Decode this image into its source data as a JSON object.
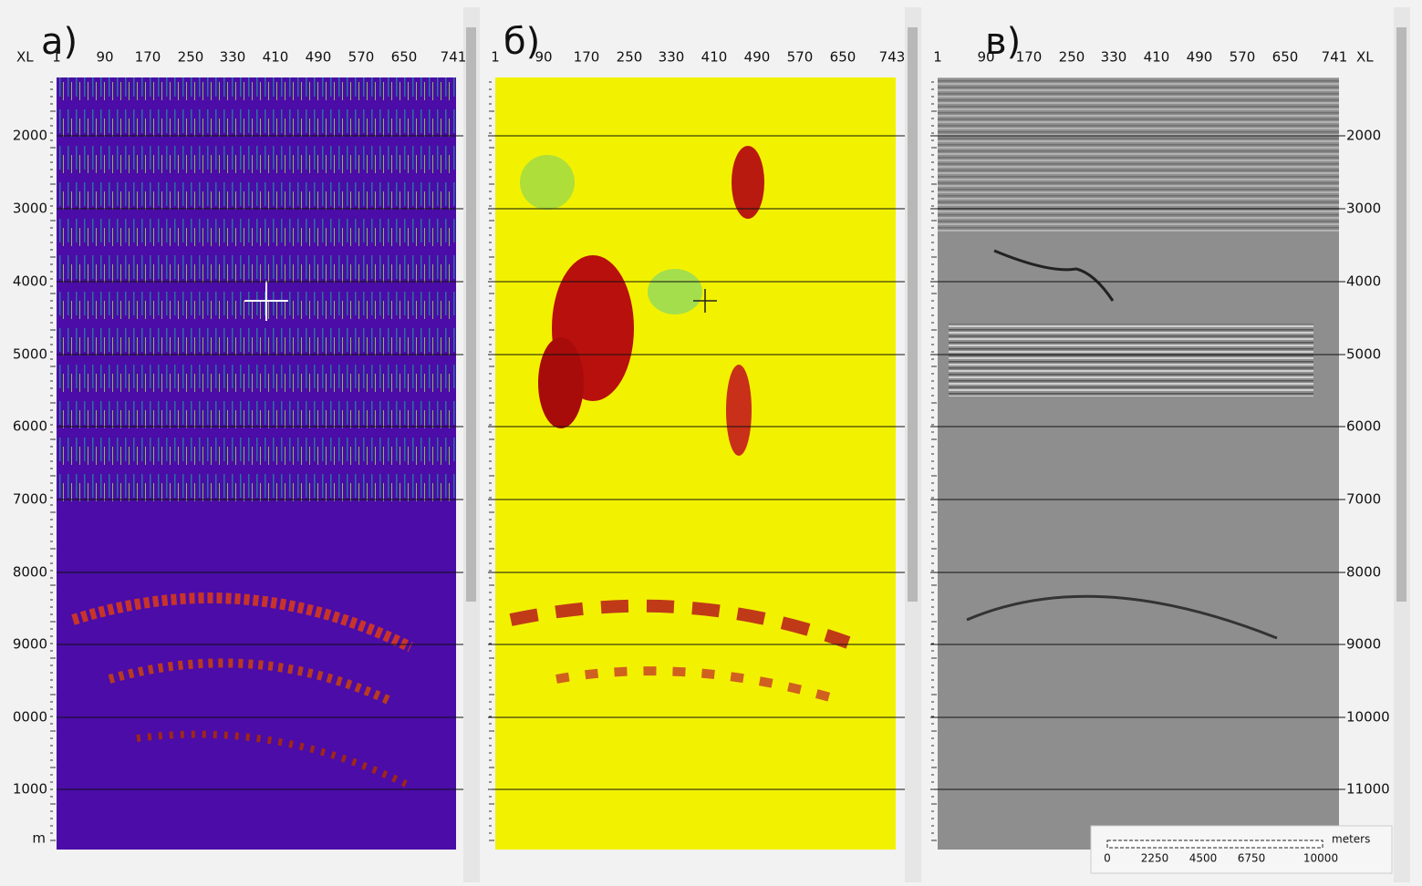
{
  "panels": [
    {
      "label": "а)",
      "axis_title": "XL",
      "top_ticks": [
        "1",
        "90",
        "170",
        "250",
        "330",
        "410",
        "490",
        "570",
        "650",
        "741"
      ],
      "depth_labels": [
        "2000",
        "3000",
        "4000",
        "5000",
        "6000",
        "7000",
        "8000",
        "9000",
        "0000",
        "1000"
      ],
      "unit": "m"
    },
    {
      "label": "б)",
      "top_ticks": [
        "1",
        "90",
        "170",
        "250",
        "330",
        "410",
        "490",
        "570",
        "650",
        "743"
      ]
    },
    {
      "label": "в)",
      "axis_title": "XL",
      "top_ticks": [
        "1",
        "90",
        "170",
        "250",
        "330",
        "410",
        "490",
        "570",
        "650",
        "741"
      ],
      "depth_labels": [
        "2000",
        "3000",
        "4000",
        "5000",
        "6000",
        "7000",
        "8000",
        "9000",
        "10000",
        "11000"
      ],
      "scale_bar": {
        "unit": "meters",
        "labels": [
          "0",
          "2250",
          "4500",
          "6750",
          "10000"
        ]
      }
    }
  ]
}
